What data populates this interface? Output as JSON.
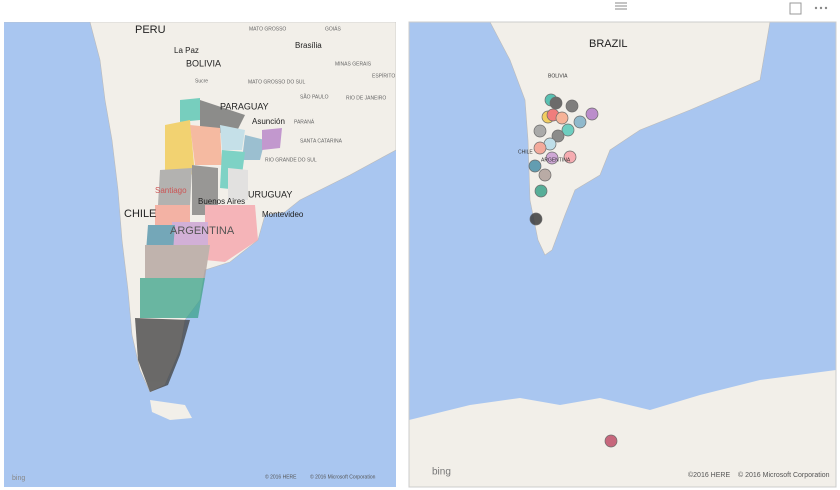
{
  "left_map": {
    "labels": [
      "PERU",
      "La Paz",
      "BOLIVIA",
      "Sucre",
      "Brasília",
      "MATO GROSSO",
      "GOIÁS",
      "MINAS GERAIS",
      "ESPÍRITO SANTO",
      "MATO GROSSO DO SUL",
      "SÃO PAULO",
      "RIO DE JANEIRO",
      "PARAGUAY",
      "Asunción",
      "PARANÁ",
      "SANTA CATARINA",
      "RIO GRANDE DO SUL",
      "URUGUAY",
      "Montevideo",
      "Buenos Aires",
      "Santiago",
      "CHILE",
      "ARGENTINA"
    ],
    "logo": "bing",
    "attribution": [
      "© 2016 HERE",
      "© 2016 Microsoft Corporation"
    ]
  },
  "right_map": {
    "labels": [
      "BRAZIL",
      "BOLIVIA",
      "CHILE",
      "ARGENTINA"
    ],
    "logo": "bing",
    "attribution": [
      "©2016 HERE",
      "© 2016 Microsoft Corporation"
    ]
  }
}
